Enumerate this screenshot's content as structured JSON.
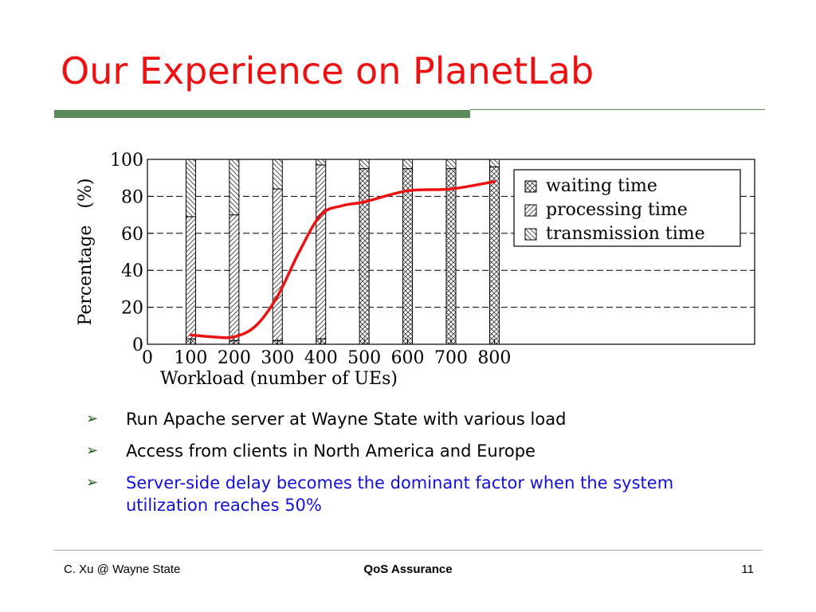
{
  "slide": {
    "title": "Our Experience on PlanetLab",
    "bullets": [
      {
        "text": "Run Apache server at Wayne State with various load",
        "color": "#000000"
      },
      {
        "text": "Access from clients  in North America and Europe",
        "color": "#000000"
      },
      {
        "text": "Server-side delay becomes the dominant factor when the system utilization reaches 50%",
        "color": "#1111dd"
      }
    ],
    "bullet_icon": "arrow-right-icon",
    "footer": {
      "left": "C. Xu @ Wayne State",
      "center": "QoS Assurance",
      "right": "11"
    }
  },
  "chart_data": {
    "type": "bar",
    "stacked": true,
    "xlabel": "Workload (number of UEs)",
    "ylabel": "Percentage   (%)",
    "x_ticks": [
      "0",
      "100",
      "200",
      "300",
      "400",
      "500",
      "600",
      "700",
      "800"
    ],
    "y_ticks": [
      "0",
      "20",
      "40",
      "60",
      "80",
      "100"
    ],
    "xlim": [
      0,
      1400
    ],
    "ylim": [
      0,
      100
    ],
    "grid": true,
    "legend_position": "top-right",
    "categories": [
      100,
      200,
      300,
      400,
      500,
      600,
      700,
      800
    ],
    "series": [
      {
        "name": "waiting time",
        "pattern": "crosshatch",
        "values": [
          3,
          2,
          2,
          3,
          95,
          95,
          95,
          96
        ]
      },
      {
        "name": "processing time",
        "pattern": "forward-diagonal",
        "values": [
          66,
          68,
          82,
          94,
          0,
          0,
          0,
          0
        ]
      },
      {
        "name": "transmission time",
        "pattern": "backward-diagonal",
        "values": [
          31,
          30,
          16,
          3,
          5,
          5,
          5,
          4
        ]
      }
    ],
    "trend_line": {
      "color": "#ee1111",
      "points": [
        [
          100,
          5
        ],
        [
          150,
          4
        ],
        [
          200,
          4
        ],
        [
          250,
          10
        ],
        [
          300,
          26
        ],
        [
          350,
          50
        ],
        [
          400,
          70
        ],
        [
          450,
          75
        ],
        [
          500,
          77
        ],
        [
          600,
          83
        ],
        [
          700,
          84
        ],
        [
          800,
          88
        ]
      ]
    }
  }
}
